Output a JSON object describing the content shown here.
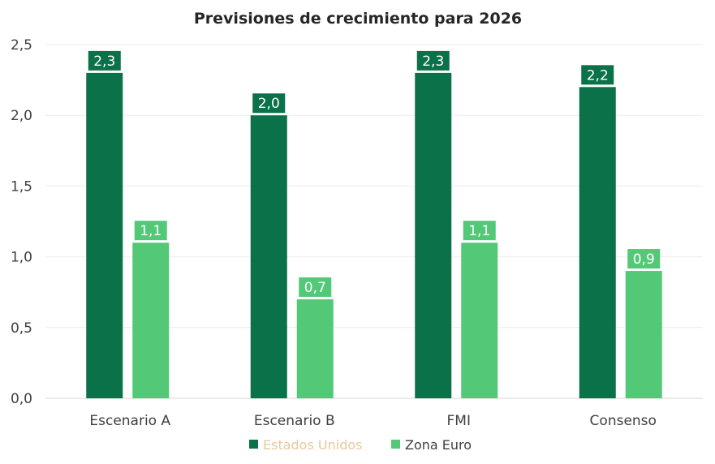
{
  "chart_data": {
    "type": "bar",
    "title": "Previsiones de crecimiento para 2026",
    "categories": [
      "Escenario A",
      "Escenario B",
      "FMI",
      "Consenso"
    ],
    "series": [
      {
        "name": "Estados Unidos",
        "values": [
          2.3,
          2.0,
          2.3,
          2.2
        ],
        "labels": [
          "2,3",
          "2,0",
          "2,3",
          "2,2"
        ],
        "color": "#0b7149",
        "legend_text_color": "#e8c99a"
      },
      {
        "name": "Zona Euro",
        "values": [
          1.1,
          0.7,
          1.1,
          0.9
        ],
        "labels": [
          "1,1",
          "0,7",
          "1,1",
          "0,9"
        ],
        "color": "#53c978",
        "legend_text_color": "#404040"
      }
    ],
    "yticks": [
      "0,0",
      "0,5",
      "1,0",
      "1,5",
      "2,0",
      "2,5"
    ],
    "ytick_values": [
      0,
      0.5,
      1.0,
      1.5,
      2.0,
      2.5
    ],
    "ylim": [
      0,
      2.5
    ],
    "grid": true,
    "legend_position": "bottom-center",
    "xlabel": "",
    "ylabel": ""
  }
}
